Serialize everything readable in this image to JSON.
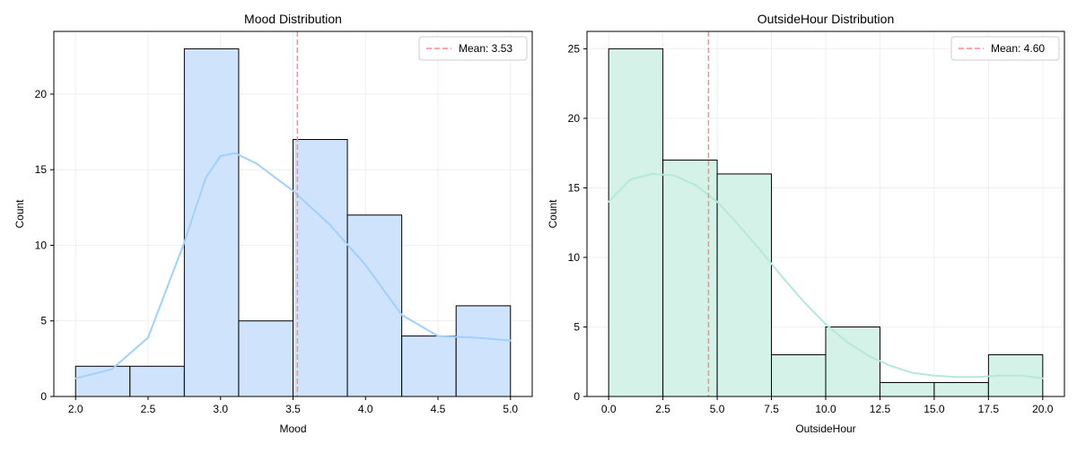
{
  "chart_data": [
    {
      "type": "histogram",
      "title": "Mood Distribution",
      "xlabel": "Mood",
      "ylabel": "Count",
      "xlim": [
        1.85,
        5.15
      ],
      "ylim": [
        0,
        24.15
      ],
      "xticks": [
        2.0,
        2.5,
        3.0,
        3.5,
        4.0,
        4.5,
        5.0
      ],
      "xtick_labels": [
        "2.0",
        "2.5",
        "3.0",
        "3.5",
        "4.0",
        "4.5",
        "5.0"
      ],
      "yticks": [
        0,
        5,
        10,
        15,
        20
      ],
      "ytick_labels": [
        "0",
        "5",
        "10",
        "15",
        "20"
      ],
      "bin_edges": [
        2.0,
        2.375,
        2.75,
        3.125,
        3.5,
        3.875,
        4.25,
        4.625,
        5.0
      ],
      "counts": [
        2,
        2,
        23,
        5,
        17,
        12,
        4,
        6
      ],
      "mean": 3.53,
      "mean_label": "Mean: 3.53",
      "kde": {
        "x": [
          2.0,
          2.25,
          2.5,
          2.75,
          2.9,
          3.0,
          3.1,
          3.25,
          3.5,
          3.75,
          4.0,
          4.25,
          4.5,
          4.75,
          5.0
        ],
        "y": [
          1.2,
          1.8,
          3.9,
          10.2,
          14.5,
          15.9,
          16.1,
          15.4,
          13.6,
          11.4,
          8.7,
          5.4,
          4.0,
          3.9,
          3.7
        ]
      },
      "colors": {
        "fill": "#cfe3fd",
        "edge": "#000000",
        "kde": "#a2cffe",
        "mean_line": "#ff8c8c",
        "grid": "#ebebeb"
      },
      "grid": true,
      "legend_position": "top-right"
    },
    {
      "type": "histogram",
      "title": "OutsideHour Distribution",
      "xlabel": "OutsideHour",
      "ylabel": "Count",
      "xlim": [
        -1.0,
        21.0
      ],
      "ylim": [
        0,
        26.25
      ],
      "xticks": [
        0.0,
        2.5,
        5.0,
        7.5,
        10.0,
        12.5,
        15.0,
        17.5,
        20.0
      ],
      "xtick_labels": [
        "0.0",
        "2.5",
        "5.0",
        "7.5",
        "10.0",
        "12.5",
        "15.0",
        "17.5",
        "20.0"
      ],
      "yticks": [
        0,
        5,
        10,
        15,
        20,
        25
      ],
      "ytick_labels": [
        "0",
        "5",
        "10",
        "15",
        "20",
        "25"
      ],
      "bin_edges": [
        0.0,
        2.5,
        5.0,
        7.5,
        10.0,
        12.5,
        15.0,
        17.5,
        20.0
      ],
      "counts": [
        25,
        17,
        16,
        3,
        5,
        1,
        1,
        3
      ],
      "mean": 4.6,
      "mean_label": "Mean: 4.60",
      "kde": {
        "x": [
          0.0,
          1.0,
          2.0,
          3.0,
          4.0,
          5.0,
          6.0,
          7.0,
          8.0,
          9.0,
          10.0,
          11.0,
          12.0,
          13.0,
          14.0,
          15.0,
          16.0,
          17.0,
          18.0,
          19.0,
          20.0
        ],
        "y": [
          14.0,
          15.6,
          16.0,
          15.9,
          15.2,
          14.0,
          12.3,
          10.5,
          8.6,
          6.8,
          5.2,
          3.9,
          2.9,
          2.2,
          1.7,
          1.5,
          1.4,
          1.4,
          1.5,
          1.5,
          1.3
        ]
      },
      "colors": {
        "fill": "#d5f2e8",
        "edge": "#000000",
        "kde": "#b6e8d8",
        "mean_line": "#ff8c8c",
        "grid": "#ebebeb"
      },
      "grid": true,
      "legend_position": "top-right"
    }
  ]
}
